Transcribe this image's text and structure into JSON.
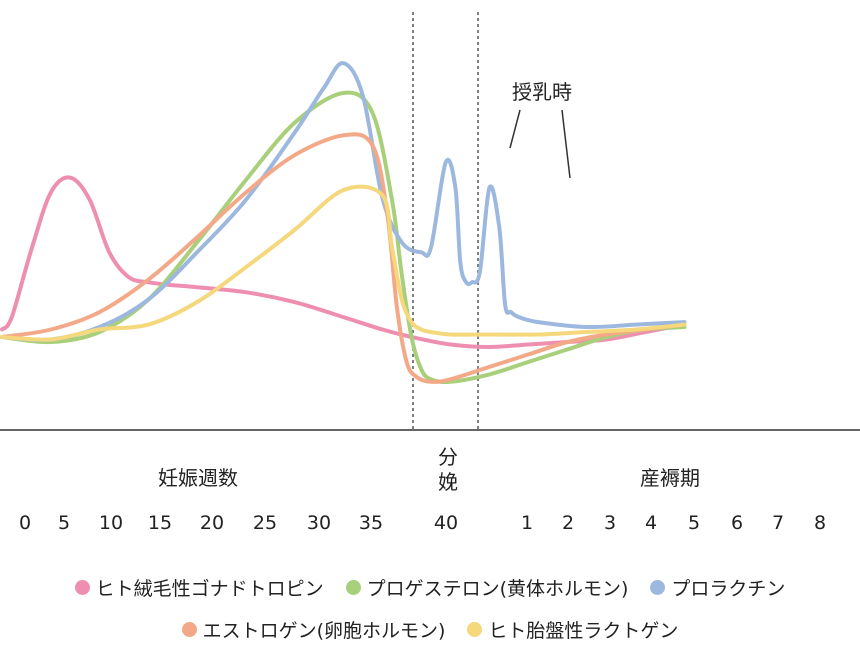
{
  "chart_data": {
    "type": "line",
    "title": "",
    "xlabel": "",
    "ylabel": "",
    "sections": {
      "pregnancy_label": "妊娠週数",
      "delivery_label": "分娩",
      "postpartum_label": "産褥期"
    },
    "x_ticks": {
      "pregnancy_weeks": [
        "0",
        "5",
        "10",
        "15",
        "20",
        "25",
        "30",
        "35",
        "40"
      ],
      "postpartum": [
        "1",
        "2",
        "3",
        "4",
        "5",
        "6",
        "7",
        "8"
      ]
    },
    "annotations": [
      {
        "text": "授乳時",
        "target_series": "プロラクチン"
      }
    ],
    "grid": false,
    "legend_position": "bottom",
    "series": [
      {
        "name": "ヒト絨毛性ゴナドトロピン",
        "color": "#ee8fb1",
        "x": [
          0,
          1,
          3,
          5,
          7,
          9,
          11,
          13,
          15,
          17,
          20,
          25,
          30,
          35,
          39,
          42,
          46,
          50,
          54,
          58,
          62,
          66,
          70
        ],
        "y": [
          0.03,
          0.08,
          0.35,
          0.58,
          0.64,
          0.55,
          0.34,
          0.24,
          0.22,
          0.21,
          0.2,
          0.18,
          0.14,
          0.08,
          0.03,
          0.0,
          -0.03,
          -0.04,
          -0.03,
          -0.02,
          -0.01,
          0.02,
          0.05
        ]
      },
      {
        "name": "プロゲステロン(黄体ホルモン)",
        "color": "#a8cf7a",
        "x": [
          0,
          5,
          10,
          15,
          20,
          25,
          30,
          35,
          38,
          40,
          41,
          42,
          43,
          44,
          46,
          50,
          54,
          58,
          62,
          66,
          70
        ],
        "y": [
          0.0,
          -0.02,
          0.02,
          0.15,
          0.38,
          0.63,
          0.86,
          0.98,
          0.9,
          0.55,
          0.25,
          0.0,
          -0.13,
          -0.17,
          -0.18,
          -0.15,
          -0.1,
          -0.05,
          0.0,
          0.03,
          0.04
        ]
      },
      {
        "name": "プロラクチン",
        "color": "#9db8de",
        "x": [
          0,
          5,
          10,
          15,
          20,
          25,
          30,
          33,
          35,
          37,
          39,
          41,
          43,
          44,
          45.5,
          46.5,
          47,
          47.6,
          48.2,
          49,
          50,
          51,
          51.6,
          52.2,
          53,
          55,
          60,
          65,
          70
        ],
        "y": [
          0.0,
          -0.01,
          0.04,
          0.15,
          0.34,
          0.55,
          0.82,
          1.0,
          1.1,
          0.97,
          0.56,
          0.38,
          0.34,
          0.36,
          0.7,
          0.6,
          0.3,
          0.22,
          0.22,
          0.26,
          0.6,
          0.44,
          0.13,
          0.1,
          0.08,
          0.06,
          0.04,
          0.05,
          0.06
        ]
      },
      {
        "name": "エストロゲン(卵胞ホルモン)",
        "color": "#f3a988",
        "x": [
          0,
          5,
          10,
          15,
          20,
          25,
          30,
          35,
          38,
          39.5,
          40.5,
          41.5,
          42.5,
          44,
          46,
          50,
          54,
          58,
          62,
          66,
          70
        ],
        "y": [
          0.0,
          0.03,
          0.1,
          0.23,
          0.4,
          0.58,
          0.73,
          0.81,
          0.77,
          0.5,
          0.12,
          -0.1,
          -0.16,
          -0.18,
          -0.17,
          -0.12,
          -0.07,
          -0.02,
          0.01,
          0.03,
          0.05
        ]
      },
      {
        "name": "ヒト胎盤性ラクトゲン",
        "color": "#f5d77c",
        "x": [
          0,
          5,
          10,
          15,
          20,
          25,
          30,
          35,
          39,
          40,
          41,
          42,
          43,
          44,
          46,
          50,
          55,
          60,
          65,
          70
        ],
        "y": [
          0.0,
          -0.01,
          0.03,
          0.05,
          0.14,
          0.28,
          0.43,
          0.59,
          0.57,
          0.36,
          0.15,
          0.06,
          0.03,
          0.02,
          0.01,
          0.01,
          0.01,
          0.02,
          0.03,
          0.05
        ]
      }
    ]
  }
}
